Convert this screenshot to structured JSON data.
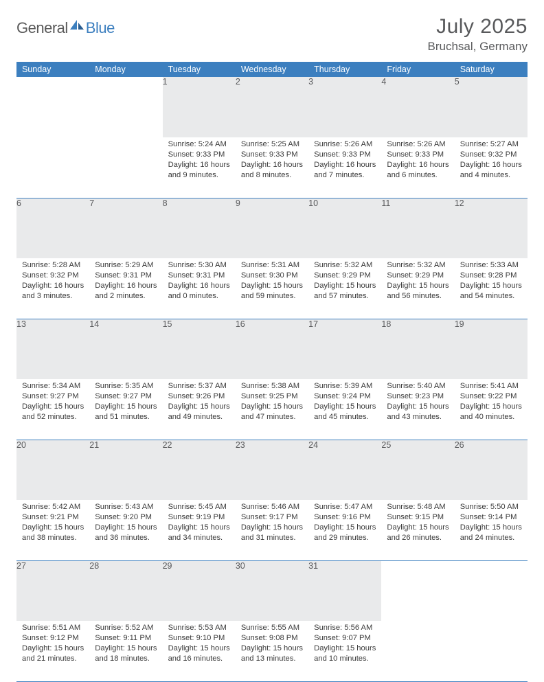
{
  "logo": {
    "part1": "General",
    "part2": "Blue"
  },
  "title": "July 2025",
  "location": "Bruchsal, Germany",
  "colors": {
    "header_bg": "#3c7fbf",
    "header_text": "#ffffff",
    "daynum_bg": "#e9eaeb",
    "text_muted": "#58595b",
    "rule": "#3c7fbf"
  },
  "weekdays": [
    "Sunday",
    "Monday",
    "Tuesday",
    "Wednesday",
    "Thursday",
    "Friday",
    "Saturday"
  ],
  "leading_blanks": 2,
  "days": [
    {
      "n": 1,
      "sunrise": "5:24 AM",
      "sunset": "9:33 PM",
      "daylight": "16 hours and 9 minutes."
    },
    {
      "n": 2,
      "sunrise": "5:25 AM",
      "sunset": "9:33 PM",
      "daylight": "16 hours and 8 minutes."
    },
    {
      "n": 3,
      "sunrise": "5:26 AM",
      "sunset": "9:33 PM",
      "daylight": "16 hours and 7 minutes."
    },
    {
      "n": 4,
      "sunrise": "5:26 AM",
      "sunset": "9:33 PM",
      "daylight": "16 hours and 6 minutes."
    },
    {
      "n": 5,
      "sunrise": "5:27 AM",
      "sunset": "9:32 PM",
      "daylight": "16 hours and 4 minutes."
    },
    {
      "n": 6,
      "sunrise": "5:28 AM",
      "sunset": "9:32 PM",
      "daylight": "16 hours and 3 minutes."
    },
    {
      "n": 7,
      "sunrise": "5:29 AM",
      "sunset": "9:31 PM",
      "daylight": "16 hours and 2 minutes."
    },
    {
      "n": 8,
      "sunrise": "5:30 AM",
      "sunset": "9:31 PM",
      "daylight": "16 hours and 0 minutes."
    },
    {
      "n": 9,
      "sunrise": "5:31 AM",
      "sunset": "9:30 PM",
      "daylight": "15 hours and 59 minutes."
    },
    {
      "n": 10,
      "sunrise": "5:32 AM",
      "sunset": "9:29 PM",
      "daylight": "15 hours and 57 minutes."
    },
    {
      "n": 11,
      "sunrise": "5:32 AM",
      "sunset": "9:29 PM",
      "daylight": "15 hours and 56 minutes."
    },
    {
      "n": 12,
      "sunrise": "5:33 AM",
      "sunset": "9:28 PM",
      "daylight": "15 hours and 54 minutes."
    },
    {
      "n": 13,
      "sunrise": "5:34 AM",
      "sunset": "9:27 PM",
      "daylight": "15 hours and 52 minutes."
    },
    {
      "n": 14,
      "sunrise": "5:35 AM",
      "sunset": "9:27 PM",
      "daylight": "15 hours and 51 minutes."
    },
    {
      "n": 15,
      "sunrise": "5:37 AM",
      "sunset": "9:26 PM",
      "daylight": "15 hours and 49 minutes."
    },
    {
      "n": 16,
      "sunrise": "5:38 AM",
      "sunset": "9:25 PM",
      "daylight": "15 hours and 47 minutes."
    },
    {
      "n": 17,
      "sunrise": "5:39 AM",
      "sunset": "9:24 PM",
      "daylight": "15 hours and 45 minutes."
    },
    {
      "n": 18,
      "sunrise": "5:40 AM",
      "sunset": "9:23 PM",
      "daylight": "15 hours and 43 minutes."
    },
    {
      "n": 19,
      "sunrise": "5:41 AM",
      "sunset": "9:22 PM",
      "daylight": "15 hours and 40 minutes."
    },
    {
      "n": 20,
      "sunrise": "5:42 AM",
      "sunset": "9:21 PM",
      "daylight": "15 hours and 38 minutes."
    },
    {
      "n": 21,
      "sunrise": "5:43 AM",
      "sunset": "9:20 PM",
      "daylight": "15 hours and 36 minutes."
    },
    {
      "n": 22,
      "sunrise": "5:45 AM",
      "sunset": "9:19 PM",
      "daylight": "15 hours and 34 minutes."
    },
    {
      "n": 23,
      "sunrise": "5:46 AM",
      "sunset": "9:17 PM",
      "daylight": "15 hours and 31 minutes."
    },
    {
      "n": 24,
      "sunrise": "5:47 AM",
      "sunset": "9:16 PM",
      "daylight": "15 hours and 29 minutes."
    },
    {
      "n": 25,
      "sunrise": "5:48 AM",
      "sunset": "9:15 PM",
      "daylight": "15 hours and 26 minutes."
    },
    {
      "n": 26,
      "sunrise": "5:50 AM",
      "sunset": "9:14 PM",
      "daylight": "15 hours and 24 minutes."
    },
    {
      "n": 27,
      "sunrise": "5:51 AM",
      "sunset": "9:12 PM",
      "daylight": "15 hours and 21 minutes."
    },
    {
      "n": 28,
      "sunrise": "5:52 AM",
      "sunset": "9:11 PM",
      "daylight": "15 hours and 18 minutes."
    },
    {
      "n": 29,
      "sunrise": "5:53 AM",
      "sunset": "9:10 PM",
      "daylight": "15 hours and 16 minutes."
    },
    {
      "n": 30,
      "sunrise": "5:55 AM",
      "sunset": "9:08 PM",
      "daylight": "15 hours and 13 minutes."
    },
    {
      "n": 31,
      "sunrise": "5:56 AM",
      "sunset": "9:07 PM",
      "daylight": "15 hours and 10 minutes."
    }
  ],
  "labels": {
    "sunrise": "Sunrise: ",
    "sunset": "Sunset: ",
    "daylight": "Daylight: "
  }
}
